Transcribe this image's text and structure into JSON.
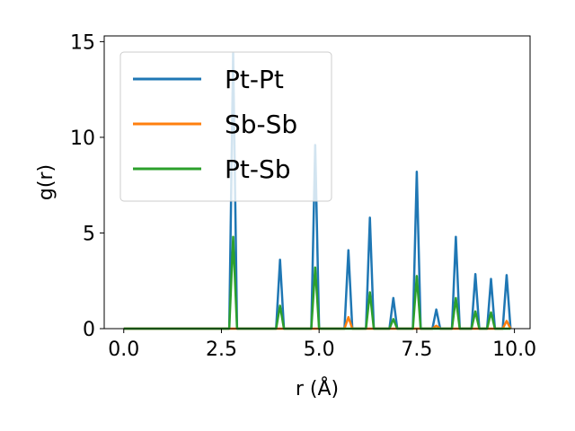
{
  "chart_data": {
    "type": "line",
    "xlabel": "r (Å)",
    "ylabel": "g(r)",
    "xlim": [
      -0.5,
      10.4
    ],
    "ylim": [
      0,
      15.3
    ],
    "xticks": [
      0.0,
      2.5,
      5.0,
      7.5,
      10.0
    ],
    "xtick_labels": [
      "0.0",
      "2.5",
      "5.0",
      "7.5",
      "10.0"
    ],
    "yticks": [
      0,
      5,
      10,
      15
    ],
    "ytick_labels": [
      "0",
      "5",
      "10",
      "15"
    ],
    "grid": false,
    "legend": "top-left",
    "series": [
      {
        "name": "Pt-Pt",
        "color": "#1f77b4",
        "x": [
          0.0,
          2.7,
          2.8,
          2.9,
          3.9,
          4.0,
          4.1,
          4.8,
          4.9,
          5.0,
          5.65,
          5.75,
          5.85,
          6.2,
          6.3,
          6.4,
          6.8,
          6.9,
          7.0,
          7.4,
          7.5,
          7.6,
          7.9,
          8.0,
          8.1,
          8.4,
          8.5,
          8.6,
          8.9,
          9.0,
          9.1,
          9.3,
          9.4,
          9.5,
          9.7,
          9.8,
          9.9
        ],
        "y": [
          0,
          0,
          14.4,
          0,
          0,
          3.6,
          0,
          0,
          9.6,
          0,
          0,
          4.1,
          0,
          0,
          5.8,
          0,
          0,
          1.6,
          0,
          0,
          8.2,
          0,
          0,
          1.0,
          0,
          0,
          4.8,
          0,
          0,
          2.85,
          0,
          0,
          2.6,
          0,
          0,
          2.8,
          0
        ]
      },
      {
        "name": "Sb-Sb",
        "color": "#ff7f0e",
        "x": [
          0.0,
          5.65,
          5.75,
          5.85,
          7.9,
          8.0,
          8.1,
          9.7,
          9.8,
          9.9
        ],
        "y": [
          0,
          0,
          0.6,
          0,
          0,
          0.15,
          0,
          0,
          0.4,
          0
        ]
      },
      {
        "name": "Pt-Sb",
        "color": "#2ca02c",
        "x": [
          0.0,
          2.7,
          2.8,
          2.9,
          3.9,
          4.0,
          4.1,
          4.8,
          4.9,
          5.0,
          6.2,
          6.3,
          6.4,
          6.8,
          6.9,
          7.0,
          7.4,
          7.5,
          7.6,
          8.4,
          8.5,
          8.6,
          8.9,
          9.0,
          9.1,
          9.3,
          9.4,
          9.5,
          9.9
        ],
        "y": [
          0,
          0,
          4.8,
          0,
          0,
          1.2,
          0,
          0,
          3.2,
          0,
          0,
          1.9,
          0,
          0,
          0.5,
          0,
          0,
          2.75,
          0,
          0,
          1.6,
          0,
          0,
          0.9,
          0,
          0,
          0.85,
          0,
          0
        ]
      }
    ]
  }
}
